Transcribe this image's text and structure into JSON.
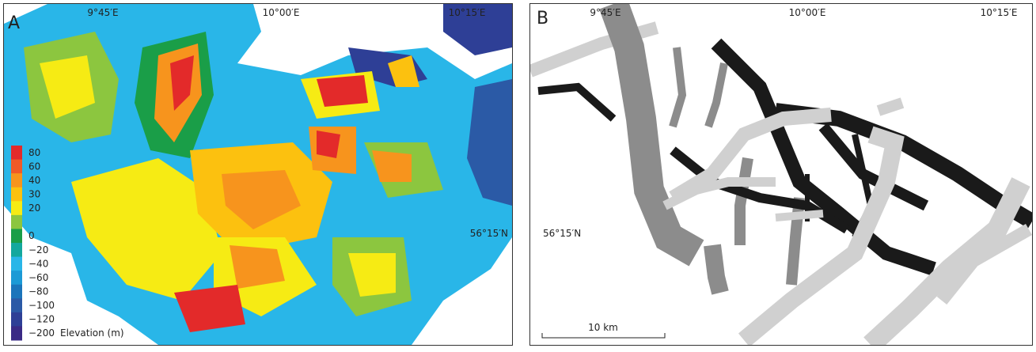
{
  "panel_a": {
    "label": "A",
    "lon_labels": [
      "9°45′E",
      "10°00′E",
      "10°15′E"
    ],
    "lat_label": "56°15′N",
    "legend": {
      "title": "Elevation (m)",
      "items": [
        {
          "label": "80",
          "color": "#e32a2a"
        },
        {
          "label": "60",
          "color": "#f05a28"
        },
        {
          "label": "40",
          "color": "#f7941d"
        },
        {
          "label": "30",
          "color": "#fcc10f"
        },
        {
          "label": "20",
          "color": "#f6eb14"
        },
        {
          "label": "",
          "color": "#8cc63f"
        },
        {
          "label": "0",
          "color": "#1a9e48"
        },
        {
          "label": "−20",
          "color": "#13a89e"
        },
        {
          "label": "−40",
          "color": "#29b6e8"
        },
        {
          "label": "−60",
          "color": "#1c9ad6"
        },
        {
          "label": "−80",
          "color": "#1b75bb"
        },
        {
          "label": "−100",
          "color": "#2b5aa6"
        },
        {
          "label": "−120",
          "color": "#2e3f96"
        },
        {
          "label": "−200",
          "color": "#3a2a85"
        }
      ]
    }
  },
  "panel_b": {
    "label": "B",
    "lon_labels": [
      "9°45′E",
      "10°00′E",
      "10°15′E"
    ],
    "lat_label": "56°15′N",
    "scale_bar": "10 km"
  }
}
